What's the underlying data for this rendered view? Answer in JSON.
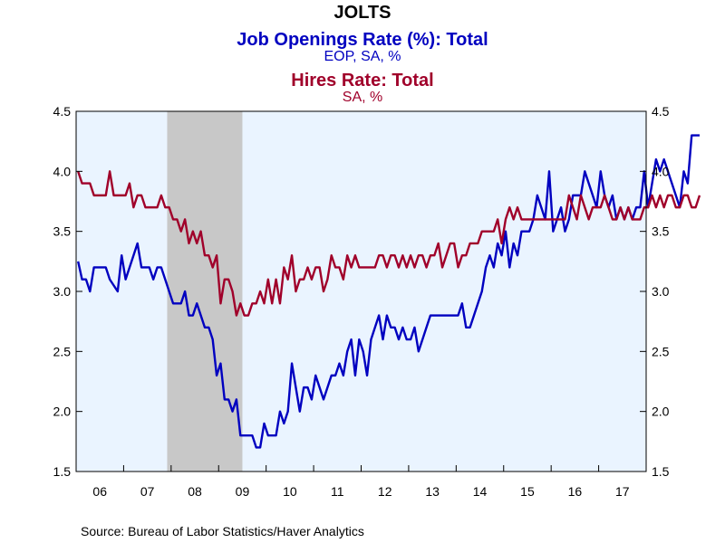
{
  "chart_data": {
    "type": "line",
    "title": "JOLTS",
    "series_titles": [
      {
        "name": "Job Openings Rate (%): Total",
        "units": "EOP, SA, %",
        "color": "#0000c0"
      },
      {
        "name": "Hires Rate: Total",
        "units": "SA, %",
        "color": "#a0002a"
      }
    ],
    "source": "Source:  Bureau of Labor Statistics/Haver Analytics",
    "xlabels": [
      "06",
      "07",
      "08",
      "09",
      "10",
      "11",
      "12",
      "13",
      "14",
      "15",
      "16",
      "17"
    ],
    "yticks_left": [
      "4.5",
      "4.0",
      "3.5",
      "3.0",
      "2.5",
      "2.0",
      "1.5"
    ],
    "yticks_right": [
      "4.5",
      "4.0",
      "3.5",
      "3.0",
      "2.5",
      "2.0",
      "1.5"
    ],
    "ylim": [
      1.5,
      4.5
    ],
    "xlim": [
      "2006-01",
      "2017-12"
    ],
    "grid": false,
    "legend": "top-center",
    "recession_shading": {
      "start": "2007-12",
      "end": "2009-06",
      "color": "#c8c8c8"
    },
    "plot_background": "#eaf4ff",
    "series": [
      {
        "name": "Job Openings Rate (%): Total",
        "color": "#0000c0",
        "values": [
          3.25,
          3.1,
          3.1,
          3.0,
          3.2,
          3.2,
          3.2,
          3.2,
          3.1,
          3.05,
          3.0,
          3.3,
          3.1,
          3.2,
          3.3,
          3.4,
          3.2,
          3.2,
          3.2,
          3.1,
          3.2,
          3.2,
          3.1,
          3.0,
          2.9,
          2.9,
          2.9,
          3.0,
          2.8,
          2.8,
          2.9,
          2.8,
          2.7,
          2.7,
          2.6,
          2.3,
          2.4,
          2.1,
          2.1,
          2.0,
          2.1,
          1.8,
          1.8,
          1.8,
          1.8,
          1.7,
          1.7,
          1.9,
          1.8,
          1.8,
          1.8,
          2.0,
          1.9,
          2.0,
          2.4,
          2.2,
          2.0,
          2.2,
          2.2,
          2.1,
          2.3,
          2.2,
          2.1,
          2.2,
          2.3,
          2.3,
          2.4,
          2.3,
          2.5,
          2.6,
          2.3,
          2.6,
          2.5,
          2.3,
          2.6,
          2.7,
          2.8,
          2.6,
          2.8,
          2.7,
          2.7,
          2.6,
          2.7,
          2.6,
          2.6,
          2.7,
          2.5,
          2.6,
          2.7,
          2.8,
          2.8,
          2.8,
          2.8,
          2.8,
          2.8,
          2.8,
          2.8,
          2.9,
          2.7,
          2.7,
          2.8,
          2.9,
          3.0,
          3.2,
          3.3,
          3.2,
          3.4,
          3.3,
          3.5,
          3.2,
          3.4,
          3.3,
          3.5,
          3.5,
          3.5,
          3.6,
          3.8,
          3.7,
          3.6,
          4.0,
          3.5,
          3.6,
          3.7,
          3.5,
          3.6,
          3.8,
          3.8,
          3.8,
          4.0,
          3.9,
          3.8,
          3.7,
          4.0,
          3.8,
          3.7,
          3.8,
          3.6,
          3.7,
          3.6,
          3.7,
          3.6,
          3.7,
          3.7,
          4.0,
          3.7,
          3.9,
          4.1,
          4.0,
          4.1,
          4.0,
          3.9,
          3.8,
          3.7,
          4.0,
          3.9,
          4.3,
          4.3,
          4.3
        ]
      },
      {
        "name": "Hires Rate: Total",
        "color": "#a0002a",
        "values": [
          4.0,
          3.9,
          3.9,
          3.9,
          3.8,
          3.8,
          3.8,
          3.8,
          4.0,
          3.8,
          3.8,
          3.8,
          3.8,
          3.9,
          3.7,
          3.8,
          3.8,
          3.7,
          3.7,
          3.7,
          3.7,
          3.8,
          3.7,
          3.7,
          3.6,
          3.6,
          3.5,
          3.6,
          3.4,
          3.5,
          3.4,
          3.5,
          3.3,
          3.3,
          3.2,
          3.3,
          2.9,
          3.1,
          3.1,
          3.0,
          2.8,
          2.9,
          2.8,
          2.8,
          2.9,
          2.9,
          3.0,
          2.9,
          3.1,
          2.9,
          3.1,
          2.9,
          3.2,
          3.1,
          3.3,
          3.0,
          3.1,
          3.1,
          3.2,
          3.1,
          3.2,
          3.2,
          3.0,
          3.1,
          3.3,
          3.2,
          3.2,
          3.1,
          3.3,
          3.2,
          3.3,
          3.2,
          3.2,
          3.2,
          3.2,
          3.2,
          3.3,
          3.3,
          3.2,
          3.3,
          3.3,
          3.2,
          3.3,
          3.2,
          3.3,
          3.2,
          3.3,
          3.3,
          3.2,
          3.3,
          3.3,
          3.4,
          3.2,
          3.3,
          3.4,
          3.4,
          3.2,
          3.3,
          3.3,
          3.4,
          3.4,
          3.4,
          3.5,
          3.5,
          3.5,
          3.5,
          3.6,
          3.4,
          3.6,
          3.7,
          3.6,
          3.7,
          3.6,
          3.6,
          3.6,
          3.6,
          3.6,
          3.6,
          3.6,
          3.6,
          3.6,
          3.6,
          3.6,
          3.6,
          3.8,
          3.7,
          3.6,
          3.8,
          3.7,
          3.6,
          3.7,
          3.7,
          3.7,
          3.8,
          3.7,
          3.6,
          3.6,
          3.7,
          3.6,
          3.7,
          3.6,
          3.6,
          3.6,
          3.7,
          3.7,
          3.8,
          3.7,
          3.8,
          3.7,
          3.8,
          3.8,
          3.7,
          3.7,
          3.8,
          3.8,
          3.7,
          3.7,
          3.8
        ]
      }
    ]
  }
}
